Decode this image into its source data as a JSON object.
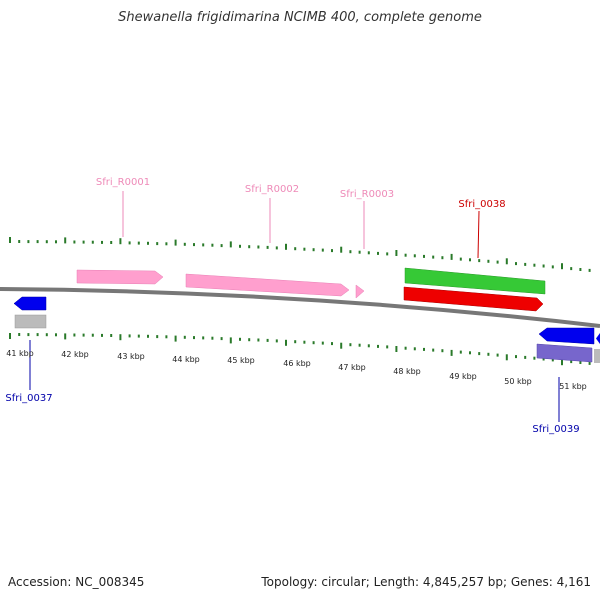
{
  "title": "Shewanella frigidimarina NCIMB 400, complete genome",
  "footer": {
    "accession": "Accession: NC_008345",
    "summary": "Topology: circular; Length: 4,845,257 bp; Genes: 4,161"
  },
  "colors": {
    "backbone": "#777777",
    "tick": "#2a7a2a",
    "rna": "#ff9fce",
    "rna_label": "#ee8ab8",
    "cds_forward": "#36c936",
    "cds_forward_hit": "#ee0000",
    "cds_reverse": "#0000ee",
    "cds_reverse_hit": "#7766cc",
    "cds_gray": "#bbbbbb",
    "red_label": "#cc0000",
    "blue_label": "#0000aa"
  },
  "kbp_labels": [
    "41 kbp",
    "42 kbp",
    "43 kbp",
    "44 kbp",
    "45 kbp",
    "46 kbp",
    "47 kbp",
    "48 kbp",
    "49 kbp",
    "50 kbp",
    "51 kbp"
  ],
  "features": [
    {
      "name": "Sfri_R0001",
      "kind": "rna",
      "strand": "+"
    },
    {
      "name": "Sfri_R0002",
      "kind": "rna",
      "strand": "+"
    },
    {
      "name": "Sfri_R0003",
      "kind": "rna",
      "strand": "+"
    },
    {
      "name": "Sfri_0038",
      "kind": "cds",
      "strand": "+"
    },
    {
      "name": "Sfri_0037",
      "kind": "cds",
      "strand": "-"
    },
    {
      "name": "Sfri_0039",
      "kind": "cds",
      "strand": "-"
    }
  ]
}
